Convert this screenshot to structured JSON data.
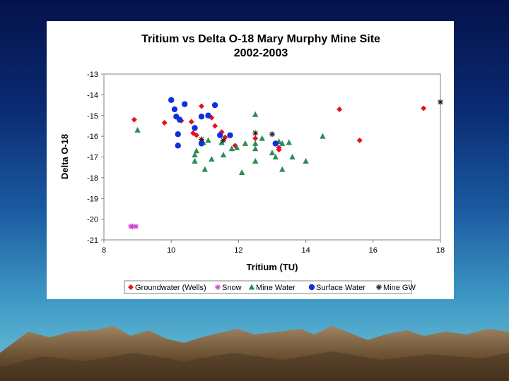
{
  "chart_data": {
    "type": "scatter",
    "title": "Tritium vs Delta O-18 Mary Murphy Mine Site",
    "subtitle": "2002-2003",
    "xlabel": "Tritium (TU)",
    "ylabel": "Delta O-18",
    "xlim": [
      8,
      18
    ],
    "ylim": [
      -21,
      -13
    ],
    "xticks": [
      "8",
      "10",
      "12",
      "14",
      "16",
      "18"
    ],
    "yticks": [
      "-13",
      "-14",
      "-15",
      "-16",
      "-17",
      "-18",
      "-19",
      "-20",
      "-21"
    ],
    "legend_position": "bottom",
    "series": [
      {
        "name": "Groundwater (Wells)",
        "marker": "diamond",
        "color": "#e8101c",
        "points": [
          [
            8.9,
            -15.2
          ],
          [
            9.8,
            -15.35
          ],
          [
            10.3,
            -15.25
          ],
          [
            10.6,
            -15.3
          ],
          [
            10.65,
            -15.85
          ],
          [
            10.75,
            -15.95
          ],
          [
            10.9,
            -14.55
          ],
          [
            11.2,
            -15.1
          ],
          [
            11.3,
            -15.5
          ],
          [
            11.5,
            -15.8
          ],
          [
            11.6,
            -16.05
          ],
          [
            11.9,
            -16.45
          ],
          [
            12.5,
            -16.1
          ],
          [
            13.2,
            -16.55
          ],
          [
            13.2,
            -16.65
          ],
          [
            15.0,
            -14.7
          ],
          [
            15.6,
            -16.2
          ],
          [
            17.5,
            -14.65
          ]
        ]
      },
      {
        "name": "Snow",
        "marker": "asterisk",
        "color": "#d040d0",
        "points": [
          [
            8.8,
            -20.35
          ],
          [
            8.85,
            -20.35
          ],
          [
            8.95,
            -20.35
          ]
        ]
      },
      {
        "name": "Mine Water",
        "marker": "triangle",
        "color": "#2e8b57",
        "points": [
          [
            9.0,
            -15.7
          ],
          [
            10.7,
            -16.9
          ],
          [
            10.7,
            -17.2
          ],
          [
            10.75,
            -16.7
          ],
          [
            10.95,
            -16.3
          ],
          [
            11.0,
            -17.6
          ],
          [
            11.1,
            -16.2
          ],
          [
            11.2,
            -17.1
          ],
          [
            11.5,
            -16.3
          ],
          [
            11.55,
            -16.9
          ],
          [
            11.8,
            -16.6
          ],
          [
            11.95,
            -16.55
          ],
          [
            12.1,
            -17.75
          ],
          [
            12.2,
            -16.35
          ],
          [
            12.5,
            -14.95
          ],
          [
            12.5,
            -16.35
          ],
          [
            12.5,
            -16.6
          ],
          [
            12.5,
            -17.2
          ],
          [
            12.7,
            -16.1
          ],
          [
            13.0,
            -16.8
          ],
          [
            13.1,
            -17.0
          ],
          [
            13.2,
            -16.25
          ],
          [
            13.3,
            -16.35
          ],
          [
            13.3,
            -17.6
          ],
          [
            13.5,
            -16.3
          ],
          [
            13.6,
            -17.0
          ],
          [
            14.0,
            -17.2
          ],
          [
            14.5,
            -16.0
          ]
        ]
      },
      {
        "name": "Surface Water",
        "marker": "circle",
        "color": "#1030e0",
        "points": [
          [
            10.0,
            -14.25
          ],
          [
            10.1,
            -14.7
          ],
          [
            10.15,
            -15.05
          ],
          [
            10.2,
            -15.9
          ],
          [
            10.2,
            -16.45
          ],
          [
            10.25,
            -15.2
          ],
          [
            10.4,
            -14.45
          ],
          [
            10.7,
            -15.6
          ],
          [
            10.9,
            -15.05
          ],
          [
            10.9,
            -16.35
          ],
          [
            11.1,
            -15.0
          ],
          [
            11.3,
            -14.5
          ],
          [
            11.45,
            -15.95
          ],
          [
            11.75,
            -15.95
          ],
          [
            13.1,
            -16.35
          ]
        ]
      },
      {
        "name": "Mine GW",
        "marker": "asterisk",
        "color": "#202020",
        "points": [
          [
            10.9,
            -16.15
          ],
          [
            11.55,
            -16.2
          ],
          [
            12.5,
            -15.85
          ],
          [
            13.0,
            -15.9
          ],
          [
            18.0,
            -14.35
          ]
        ]
      }
    ]
  }
}
